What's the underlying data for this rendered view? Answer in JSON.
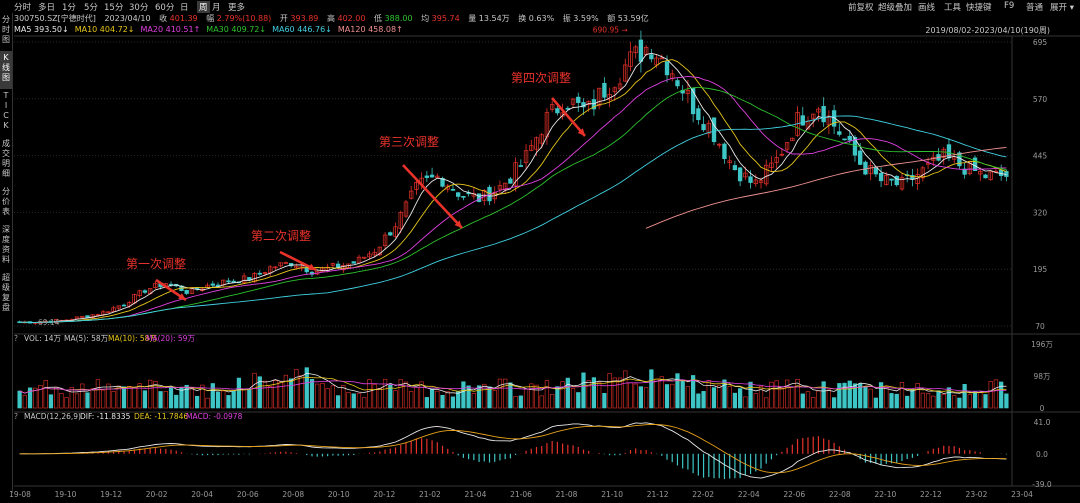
{
  "toolbar": {
    "left_items": [
      "分时",
      "多日",
      "1分",
      "5分",
      "15分",
      "30分",
      "60分",
      "日",
      "周",
      "月",
      "更多"
    ],
    "active_index": 8,
    "right_items": [
      "前复权",
      "超级叠加",
      "画线",
      "工具",
      "快捷键",
      "F9",
      "普通",
      "展开"
    ]
  },
  "info": {
    "code": "300750.SZ[宁德时代]",
    "date": "2023/04/10",
    "close_label": "收",
    "close": "401.39",
    "change_label": "幅",
    "change": "2.79%(10.88)",
    "open_label": "开",
    "open": "393.89",
    "high_label": "高",
    "high": "402.00",
    "low_label": "低",
    "low": "388.00",
    "avg_label": "均",
    "avg": "395.74",
    "vol_label": "量",
    "vol": "13.54万",
    "turn_label": "换",
    "turn": "0.63%",
    "amp_label": "振",
    "amp": "3.59%",
    "amount_label": "额",
    "amount": "53.59亿"
  },
  "ma": [
    {
      "label": "MA5",
      "value": "393.50↓",
      "color": "#e8e8e8"
    },
    {
      "label": "MA10",
      "value": "404.72↓",
      "color": "#e6c619"
    },
    {
      "label": "MA20",
      "value": "410.51↑",
      "color": "#e040e0"
    },
    {
      "label": "MA30",
      "value": "409.72↓",
      "color": "#2ec22e"
    },
    {
      "label": "MA60",
      "value": "446.76↓",
      "color": "#40d0e0"
    },
    {
      "label": "MA120",
      "value": "458.08↑",
      "color": "#f09090"
    }
  ],
  "date_range": "2019/08/02-2023/04/10(190周)",
  "sidebar": [
    "分时图",
    "K线图",
    "TICK",
    "成交明细",
    "分价表",
    "深度资料",
    "超级复盘"
  ],
  "sidebar_active": 1,
  "price_axis": [
    "695",
    "570",
    "445",
    "320",
    "195",
    "70"
  ],
  "peak_label": "690.95",
  "low_label_chart": "69.14",
  "annotations": [
    "第一次调整",
    "第二次调整",
    "第三次调整",
    "第四次调整"
  ],
  "vol_header": {
    "q": "?",
    "vol": "VOL: 14万",
    "ma5": "MA(5): 58万",
    "ma10": "MA(10): 58万",
    "ma20": "MA(20): 59万"
  },
  "vol_axis": [
    "196万",
    "98万",
    "0"
  ],
  "macd_header": {
    "q": "?",
    "name": "MACD(12,26,9)",
    "dif": "DIF: -11.8335",
    "dea": "DEA: -11.7846",
    "macd": "MACD: -0.0978"
  },
  "macd_axis": [
    "41.0",
    "0.0",
    "-39.0"
  ],
  "x_axis": [
    "19-08",
    "19-10",
    "19-12",
    "20-02",
    "20-04",
    "20-06",
    "20-08",
    "20-10",
    "20-12",
    "21-02",
    "21-04",
    "21-06",
    "21-08",
    "21-10",
    "21-12",
    "22-02",
    "22-04",
    "22-06",
    "22-08",
    "22-10",
    "22-12",
    "23-02",
    "23-04"
  ],
  "colors": {
    "up": "#e8322a",
    "down": "#3ec6c6",
    "bg": "#000000",
    "grid": "#2a2a2a",
    "anno": "#e8322a"
  },
  "chart_data": {
    "type": "candlestick",
    "x_ticks": [
      "19-08",
      "19-10",
      "19-12",
      "20-02",
      "20-04",
      "20-06",
      "20-08",
      "20-10",
      "20-12",
      "21-02",
      "21-04",
      "21-06",
      "21-08",
      "21-10",
      "21-12",
      "22-02",
      "22-04",
      "22-06",
      "22-08",
      "22-10",
      "22-12",
      "23-02",
      "23-04"
    ],
    "ylim": [
      70,
      695
    ],
    "y_ticks": [
      695,
      570,
      445,
      320,
      195,
      70
    ],
    "close_trend": [
      78,
      80,
      82,
      90,
      100,
      120,
      150,
      165,
      145,
      160,
      170,
      175,
      200,
      210,
      190,
      200,
      210,
      240,
      300,
      380,
      400,
      360,
      350,
      380,
      430,
      520,
      570,
      540,
      600,
      650,
      690,
      640,
      560,
      500,
      420,
      380,
      430,
      520,
      560,
      500,
      430,
      390,
      380,
      410,
      440,
      420,
      400,
      401
    ],
    "vol_ylim": [
      0,
      196
    ],
    "macd_ylim": [
      -39,
      41
    ]
  }
}
